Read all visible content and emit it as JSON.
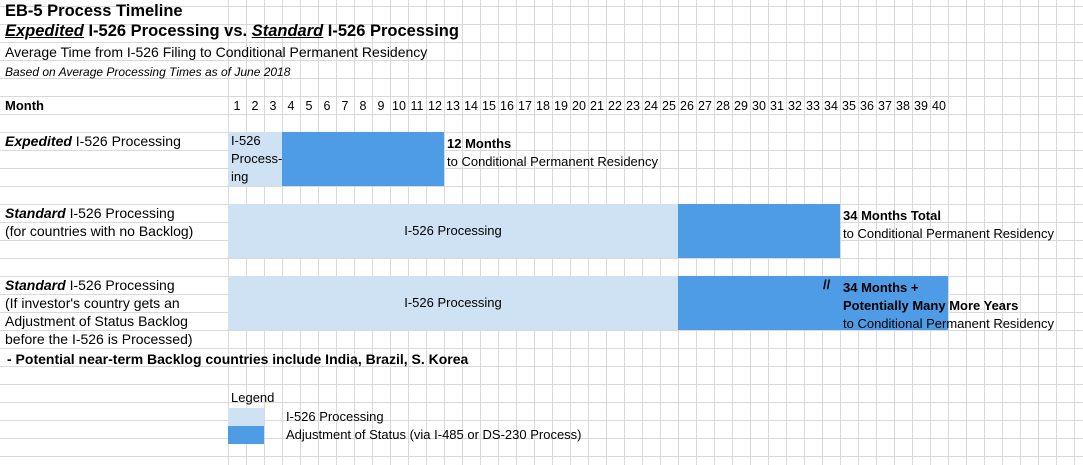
{
  "title": "EB-5 Process Timeline",
  "subtitle_parts": {
    "expedited": "Expedited",
    "mid": " I-526 Processing vs. ",
    "standard": "Standard",
    "end": " I-526 Processing"
  },
  "description": "Average Time from I-526 Filing to Conditional Permanent Residency",
  "basis": "Based on Average Processing Times as of June 2018",
  "month_label": "Month",
  "chart_data": {
    "type": "gantt",
    "x_axis": {
      "label": "Month",
      "ticks": [
        1,
        2,
        3,
        4,
        5,
        6,
        7,
        8,
        9,
        10,
        11,
        12,
        13,
        14,
        15,
        16,
        17,
        18,
        19,
        20,
        21,
        22,
        23,
        24,
        25,
        26,
        27,
        28,
        29,
        30,
        31,
        32,
        33,
        34,
        35,
        36,
        37,
        38,
        39,
        40
      ]
    },
    "rows": [
      {
        "label_emph": "Expedited",
        "label_rest": " I-526 Processing",
        "label_lines": [],
        "segments": [
          {
            "phase": "I-526 Processing",
            "start": 1,
            "end": 3,
            "text": "I-526 Process-ing"
          },
          {
            "phase": "Adjustment of Status",
            "start": 4,
            "end": 12,
            "text": ""
          }
        ],
        "result_bold": [
          "12 Months"
        ],
        "result_text": "to Conditional Permanent Residency"
      },
      {
        "label_emph": "Standard",
        "label_rest": " I-526 Processing",
        "label_lines": [
          "(for countries with no Backlog)"
        ],
        "segments": [
          {
            "phase": "I-526 Processing",
            "start": 1,
            "end": 25,
            "text": "I-526 Processing"
          },
          {
            "phase": "Adjustment of Status",
            "start": 26,
            "end": 34,
            "text": ""
          }
        ],
        "result_bold": [
          "34 Months Total"
        ],
        "result_text": "to Conditional Permanent Residency"
      },
      {
        "label_emph": "Standard",
        "label_rest": " I-526 Processing",
        "label_lines": [
          "(If investor's country gets an",
          "Adjustment of Status Backlog",
          "before the I-526 is Processed)"
        ],
        "segments": [
          {
            "phase": "I-526 Processing",
            "start": 1,
            "end": 25,
            "text": "I-526 Processing"
          },
          {
            "phase": "Adjustment of Status",
            "start": 26,
            "end": 40,
            "text": ""
          }
        ],
        "break_marker": "//",
        "result_bold": [
          "34 Months +",
          "Potentially Many More Years"
        ],
        "result_text": "to Conditional Permanent Residency"
      }
    ],
    "legend": {
      "title": "Legend",
      "entries": [
        {
          "label": "I-526 Processing",
          "color": "#cfe2f3"
        },
        {
          "label": "Adjustment of Status (via I-485 or DS-230 Process)",
          "color": "#4e9be6"
        }
      ]
    }
  },
  "note": " - Potential near-term Backlog countries include India, Brazil, S. Korea",
  "colors": {
    "light": "#cfe2f3",
    "dark": "#4e9be6",
    "grid": "#d9d9d9"
  }
}
